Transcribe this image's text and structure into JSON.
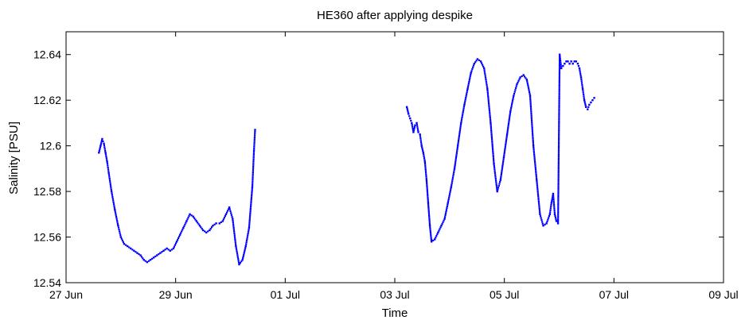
{
  "chart_data": {
    "type": "scatter",
    "title": "HE360 after applying despike",
    "xlabel": "Time",
    "ylabel": "Salinity [PSU]",
    "x_unit": "day",
    "xlim": [
      "27 Jun",
      "09 Jul"
    ],
    "x_ticks": [
      "27 Jun",
      "29 Jun",
      "01 Jul",
      "03 Jul",
      "05 Jul",
      "07 Jul",
      "09 Jul"
    ],
    "ylim": [
      12.54,
      12.65
    ],
    "y_ticks": [
      "12.54",
      "12.56",
      "12.58",
      "12.6",
      "12.62",
      "12.64"
    ],
    "grid": false,
    "marker_color": "#0000ff",
    "segments": [
      {
        "x": [
          "27 Jun 14:24",
          "27 Jun 15:07",
          "27 Jun 15:50",
          "27 Jun 16:34",
          "27 Jun 17:17",
          "27 Jun 18:00",
          "27 Jun 18:43",
          "27 Jun 19:55",
          "27 Jun 21:22",
          "27 Jun 22:48",
          "28 Jun 00:00",
          "28 Jun 01:26",
          "28 Jun 02:53",
          "28 Jun 04:19",
          "28 Jun 05:46",
          "28 Jun 07:12",
          "28 Jun 08:38",
          "28 Jun 10:05",
          "28 Jun 11:31",
          "28 Jun 12:58",
          "28 Jun 14:24",
          "28 Jun 15:50",
          "28 Jun 17:17",
          "28 Jun 18:43",
          "28 Jun 20:10",
          "28 Jun 21:36",
          "28 Jun 23:02",
          "29 Jun 00:29",
          "29 Jun 01:55",
          "29 Jun 03:22",
          "29 Jun 04:48",
          "29 Jun 06:14",
          "29 Jun 07:41",
          "29 Jun 09:07",
          "29 Jun 10:34",
          "29 Jun 12:00",
          "29 Jun 13:26",
          "29 Jun 14:53",
          "29 Jun 16:19",
          "29 Jun 17:46",
          "29 Jun 19:12",
          "29 Jun 20:38",
          "29 Jun 22:05",
          "29 Jun 23:31",
          "30 Jun 00:58",
          "30 Jun 02:24",
          "30 Jun 03:50",
          "30 Jun 05:17",
          "30 Jun 06:43",
          "30 Jun 08:10",
          "30 Jun 09:36",
          "30 Jun 10:19",
          "30 Jun 10:48"
        ],
        "y": [
          12.597,
          12.6,
          12.603,
          12.601,
          12.597,
          12.593,
          12.588,
          12.58,
          12.572,
          12.565,
          12.56,
          12.557,
          12.556,
          12.555,
          12.554,
          12.553,
          12.552,
          12.55,
          12.549,
          12.55,
          12.551,
          12.552,
          12.553,
          12.554,
          12.555,
          12.554,
          12.555,
          12.558,
          12.561,
          12.564,
          12.567,
          12.57,
          12.569,
          12.567,
          12.565,
          12.563,
          12.562,
          12.563,
          12.565,
          12.566,
          12.566,
          12.567,
          12.57,
          12.573,
          12.568,
          12.556,
          12.548,
          12.55,
          12.556,
          12.564,
          12.582,
          12.598,
          12.607
        ]
      },
      {
        "x": [
          "03 Jul 05:17",
          "03 Jul 06:00",
          "03 Jul 06:43",
          "03 Jul 07:26",
          "03 Jul 08:10",
          "03 Jul 08:53",
          "03 Jul 09:36",
          "03 Jul 10:19",
          "03 Jul 11:02",
          "03 Jul 11:46",
          "03 Jul 12:29",
          "03 Jul 13:12",
          "03 Jul 13:55",
          "03 Jul 14:38",
          "03 Jul 15:22",
          "03 Jul 16:05",
          "03 Jul 17:31",
          "03 Jul 18:58",
          "03 Jul 20:24",
          "03 Jul 21:50",
          "03 Jul 23:17",
          "04 Jul 00:43",
          "04 Jul 02:10",
          "04 Jul 03:36",
          "04 Jul 05:02",
          "04 Jul 06:29",
          "04 Jul 07:55",
          "04 Jul 09:22",
          "04 Jul 10:48",
          "04 Jul 12:14",
          "04 Jul 13:41",
          "04 Jul 15:07",
          "04 Jul 16:34",
          "04 Jul 18:00",
          "04 Jul 19:26",
          "04 Jul 20:53",
          "04 Jul 22:19",
          "04 Jul 23:46",
          "05 Jul 01:12",
          "05 Jul 02:38",
          "05 Jul 04:05",
          "05 Jul 05:31",
          "05 Jul 06:58",
          "05 Jul 08:24",
          "05 Jul 09:50",
          "05 Jul 11:17",
          "05 Jul 12:43",
          "05 Jul 14:10",
          "05 Jul 15:36",
          "05 Jul 17:02",
          "05 Jul 18:29",
          "05 Jul 19:55",
          "05 Jul 20:38",
          "05 Jul 21:22",
          "05 Jul 22:05",
          "05 Jul 22:48",
          "05 Jul 23:31",
          "06 Jul 00:14",
          "06 Jul 00:58",
          "06 Jul 01:41",
          "06 Jul 02:24",
          "06 Jul 03:07",
          "06 Jul 03:50",
          "06 Jul 04:34",
          "06 Jul 05:17",
          "06 Jul 06:00",
          "06 Jul 06:43",
          "06 Jul 07:26",
          "06 Jul 08:10",
          "06 Jul 08:53",
          "06 Jul 09:36",
          "06 Jul 10:19",
          "06 Jul 11:02",
          "06 Jul 11:46",
          "06 Jul 12:29",
          "06 Jul 13:12",
          "06 Jul 13:55",
          "06 Jul 14:38",
          "06 Jul 15:22"
        ],
        "y": [
          12.617,
          12.614,
          12.612,
          12.61,
          12.606,
          12.609,
          12.61,
          12.606,
          12.605,
          12.6,
          12.597,
          12.593,
          12.585,
          12.575,
          12.565,
          12.558,
          12.559,
          12.562,
          12.565,
          12.568,
          12.575,
          12.582,
          12.59,
          12.6,
          12.61,
          12.618,
          12.625,
          12.632,
          12.636,
          12.638,
          12.637,
          12.634,
          12.625,
          12.61,
          12.592,
          12.58,
          12.585,
          12.595,
          12.605,
          12.615,
          12.622,
          12.627,
          12.63,
          12.631,
          12.629,
          12.622,
          12.6,
          12.585,
          12.57,
          12.565,
          12.566,
          12.57,
          12.575,
          12.579,
          12.57,
          12.567,
          12.566,
          12.64,
          12.634,
          12.635,
          12.636,
          12.637,
          12.637,
          12.636,
          12.637,
          12.636,
          12.637,
          12.637,
          12.636,
          12.634,
          12.63,
          12.625,
          12.62,
          12.617,
          12.616,
          12.618,
          12.619,
          12.62,
          12.621
        ]
      }
    ]
  }
}
